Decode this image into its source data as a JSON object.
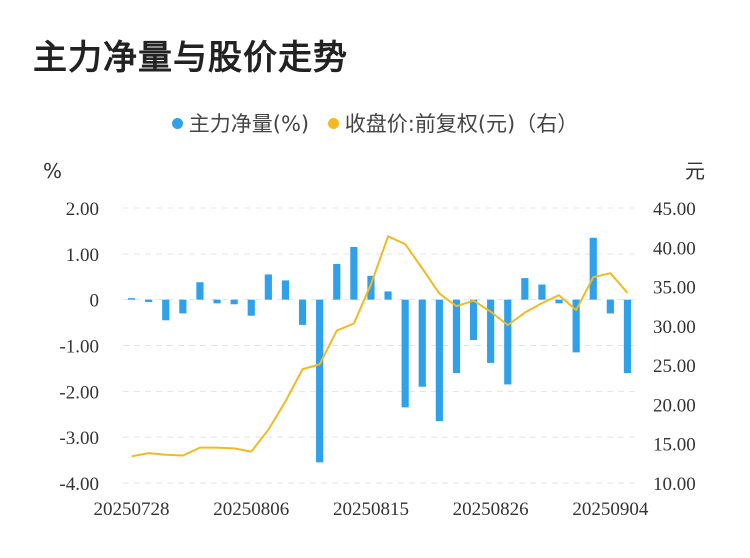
{
  "title": "主力净量与股价走势",
  "legend": [
    {
      "label": "主力净量(%)",
      "color": "#2ea1ea"
    },
    {
      "label": "收盘价:前复权(元)（右）",
      "color": "#f2b921"
    }
  ],
  "chart_data": {
    "type": "bar+line",
    "left_unit": "%",
    "right_unit": "元",
    "left_ticks": [
      "2.00",
      "1.00",
      "0",
      "-1.00",
      "-2.00",
      "-3.00",
      "-4.00"
    ],
    "right_ticks": [
      "45.00",
      "40.00",
      "35.00",
      "30.00",
      "25.00",
      "20.00",
      "15.00",
      "10.00"
    ],
    "left_ylim": [
      -4,
      2
    ],
    "right_ylim": [
      10,
      45
    ],
    "x_tick_labels": [
      "20250728",
      "20250806",
      "20250815",
      "20250826",
      "20250904"
    ],
    "x_tick_index": [
      0,
      7,
      14,
      21,
      28
    ],
    "bar_color": "#2ea1ea",
    "line_color": "#f2b921",
    "grid": true,
    "series": [
      {
        "name": "主力净量(%)",
        "type": "bar",
        "axis": "left",
        "values": [
          0.03,
          -0.05,
          -0.45,
          -0.3,
          0.38,
          -0.08,
          -0.1,
          -0.35,
          0.55,
          0.42,
          -0.55,
          -3.55,
          0.78,
          1.15,
          0.52,
          0.18,
          -2.35,
          -1.9,
          -2.65,
          -1.6,
          -0.88,
          -1.38,
          -1.85,
          0.47,
          0.33,
          -0.08,
          -1.15,
          1.35,
          -0.3,
          -1.6
        ]
      },
      {
        "name": "收盘价:前复权(元)（右）",
        "type": "line",
        "axis": "right",
        "values": [
          13.4,
          13.8,
          13.6,
          13.5,
          14.5,
          14.5,
          14.4,
          14.0,
          16.8,
          20.4,
          24.5,
          25.1,
          29.4,
          30.3,
          35.3,
          41.4,
          40.4,
          37.3,
          34.1,
          32.5,
          33.2,
          31.8,
          30.1,
          31.7,
          32.9,
          33.9,
          32.0,
          36.2,
          36.7,
          34.2
        ]
      }
    ]
  }
}
